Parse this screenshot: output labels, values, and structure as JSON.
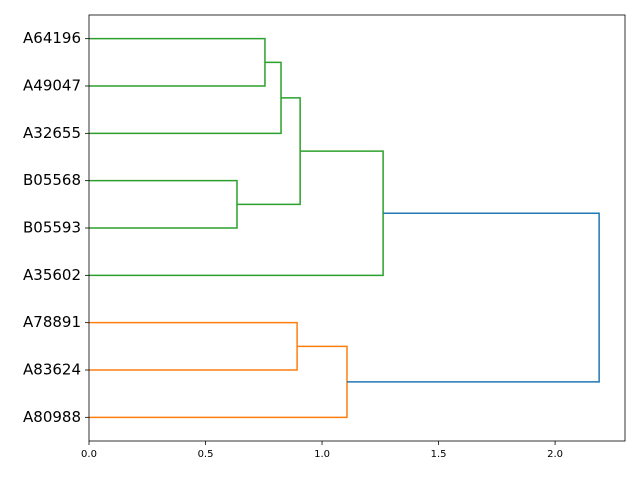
{
  "chart_data": {
    "type": "dendrogram",
    "orientation": "left",
    "categories": [
      "A64196",
      "A49047",
      "A32655",
      "B05568",
      "B05593",
      "A35602",
      "A78891",
      "A83624",
      "A80988"
    ],
    "merges": [
      {
        "children": [
          0,
          1
        ],
        "height": 0.755,
        "color": "#2ca02c"
      },
      {
        "children": [
          9,
          2
        ],
        "height": 0.824,
        "color": "#2ca02c"
      },
      {
        "children": [
          3,
          4
        ],
        "height": 0.635,
        "color": "#2ca02c"
      },
      {
        "children": [
          10,
          11
        ],
        "height": 0.906,
        "color": "#2ca02c"
      },
      {
        "children": [
          12,
          5
        ],
        "height": 1.262,
        "color": "#2ca02c"
      },
      {
        "children": [
          6,
          7
        ],
        "height": 0.893,
        "color": "#ff7f0e"
      },
      {
        "children": [
          14,
          8
        ],
        "height": 1.107,
        "color": "#ff7f0e"
      },
      {
        "children": [
          13,
          15
        ],
        "height": 2.189,
        "color": "#1f77b4"
      }
    ],
    "xlim": [
      0,
      2.3
    ],
    "xticks": [
      {
        "value": 0,
        "label": "0.0"
      },
      0.5,
      {
        "value": 1,
        "label": "1.0"
      },
      1.5,
      {
        "value": 2,
        "label": "2.0"
      }
    ]
  }
}
